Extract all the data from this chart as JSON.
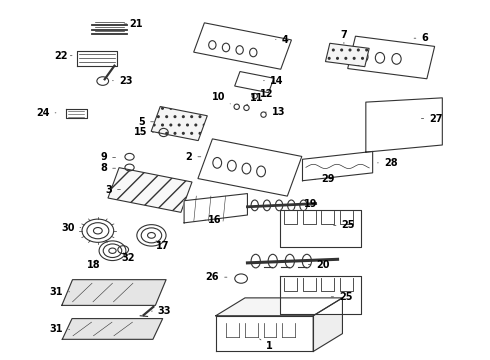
{
  "background_color": "#ffffff",
  "line_color": "#333333",
  "text_color": "#000000",
  "fig_width": 4.9,
  "fig_height": 3.6,
  "dpi": 100,
  "font_size": 7
}
